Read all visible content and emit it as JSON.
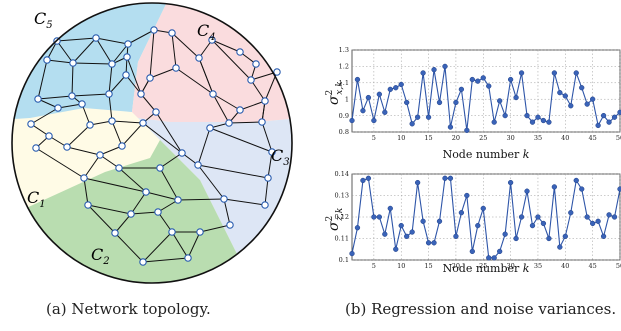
{
  "topology": {
    "cluster_labels": [
      "C1",
      "C2",
      "C3",
      "C4",
      "C5"
    ],
    "caption": "(a)  Network topology."
  },
  "plots_caption": "(b)  Regression and noise variances.",
  "chart_data": [
    {
      "type": "line",
      "ylabel": "σ²x,k",
      "xlabel": "Node number k",
      "xlim": [
        1,
        50
      ],
      "ylim": [
        0.8,
        1.3
      ],
      "xticks": [
        5,
        10,
        15,
        20,
        25,
        30,
        35,
        40,
        45,
        50
      ],
      "yticks": [
        0.8,
        0.9,
        1.0,
        1.1,
        1.2,
        1.3
      ],
      "ytick_labels": [
        "0.8",
        "0.9",
        "1",
        "1.1",
        "1.2",
        "1.3"
      ],
      "grid": true,
      "x": [
        1,
        2,
        3,
        4,
        5,
        6,
        7,
        8,
        9,
        10,
        11,
        12,
        13,
        14,
        15,
        16,
        17,
        18,
        19,
        20,
        21,
        22,
        23,
        24,
        25,
        26,
        27,
        28,
        29,
        30,
        31,
        32,
        33,
        34,
        35,
        36,
        37,
        38,
        39,
        40,
        41,
        42,
        43,
        44,
        45,
        46,
        47,
        48,
        49,
        50
      ],
      "values": [
        0.87,
        1.12,
        0.93,
        1.01,
        0.87,
        1.03,
        0.92,
        1.06,
        1.07,
        1.09,
        0.98,
        0.85,
        0.89,
        1.16,
        0.89,
        1.18,
        0.98,
        1.2,
        0.83,
        0.98,
        1.06,
        0.81,
        1.12,
        1.11,
        1.13,
        1.08,
        0.86,
        0.99,
        0.9,
        1.12,
        1.01,
        1.16,
        0.9,
        0.86,
        0.89,
        0.87,
        0.86,
        1.16,
        1.04,
        1.02,
        0.96,
        1.16,
        1.07,
        0.97,
        1.0,
        0.84,
        0.9,
        0.86,
        0.89,
        0.92
      ]
    },
    {
      "type": "line",
      "ylabel": "σ²z,k",
      "xlabel": "Node number k",
      "xlim": [
        1,
        50
      ],
      "ylim": [
        0.1,
        0.14
      ],
      "xticks": [
        5,
        10,
        15,
        20,
        25,
        30,
        35,
        40,
        45,
        50
      ],
      "yticks": [
        0.1,
        0.11,
        0.12,
        0.13,
        0.14
      ],
      "ytick_labels": [
        "0.1",
        "0.11",
        "0.12",
        "0.13",
        "0.14"
      ],
      "grid": true,
      "x": [
        1,
        2,
        3,
        4,
        5,
        6,
        7,
        8,
        9,
        10,
        11,
        12,
        13,
        14,
        15,
        16,
        17,
        18,
        19,
        20,
        21,
        22,
        23,
        24,
        25,
        26,
        27,
        28,
        29,
        30,
        31,
        32,
        33,
        34,
        35,
        36,
        37,
        38,
        39,
        40,
        41,
        42,
        43,
        44,
        45,
        46,
        47,
        48,
        49,
        50
      ],
      "values": [
        0.103,
        0.115,
        0.137,
        0.138,
        0.12,
        0.12,
        0.112,
        0.124,
        0.105,
        0.116,
        0.111,
        0.113,
        0.136,
        0.118,
        0.108,
        0.108,
        0.118,
        0.138,
        0.138,
        0.111,
        0.122,
        0.13,
        0.104,
        0.116,
        0.124,
        0.101,
        0.101,
        0.104,
        0.112,
        0.136,
        0.11,
        0.12,
        0.132,
        0.116,
        0.12,
        0.117,
        0.11,
        0.134,
        0.106,
        0.111,
        0.122,
        0.137,
        0.133,
        0.12,
        0.117,
        0.118,
        0.111,
        0.121,
        0.12,
        0.133
      ]
    }
  ]
}
